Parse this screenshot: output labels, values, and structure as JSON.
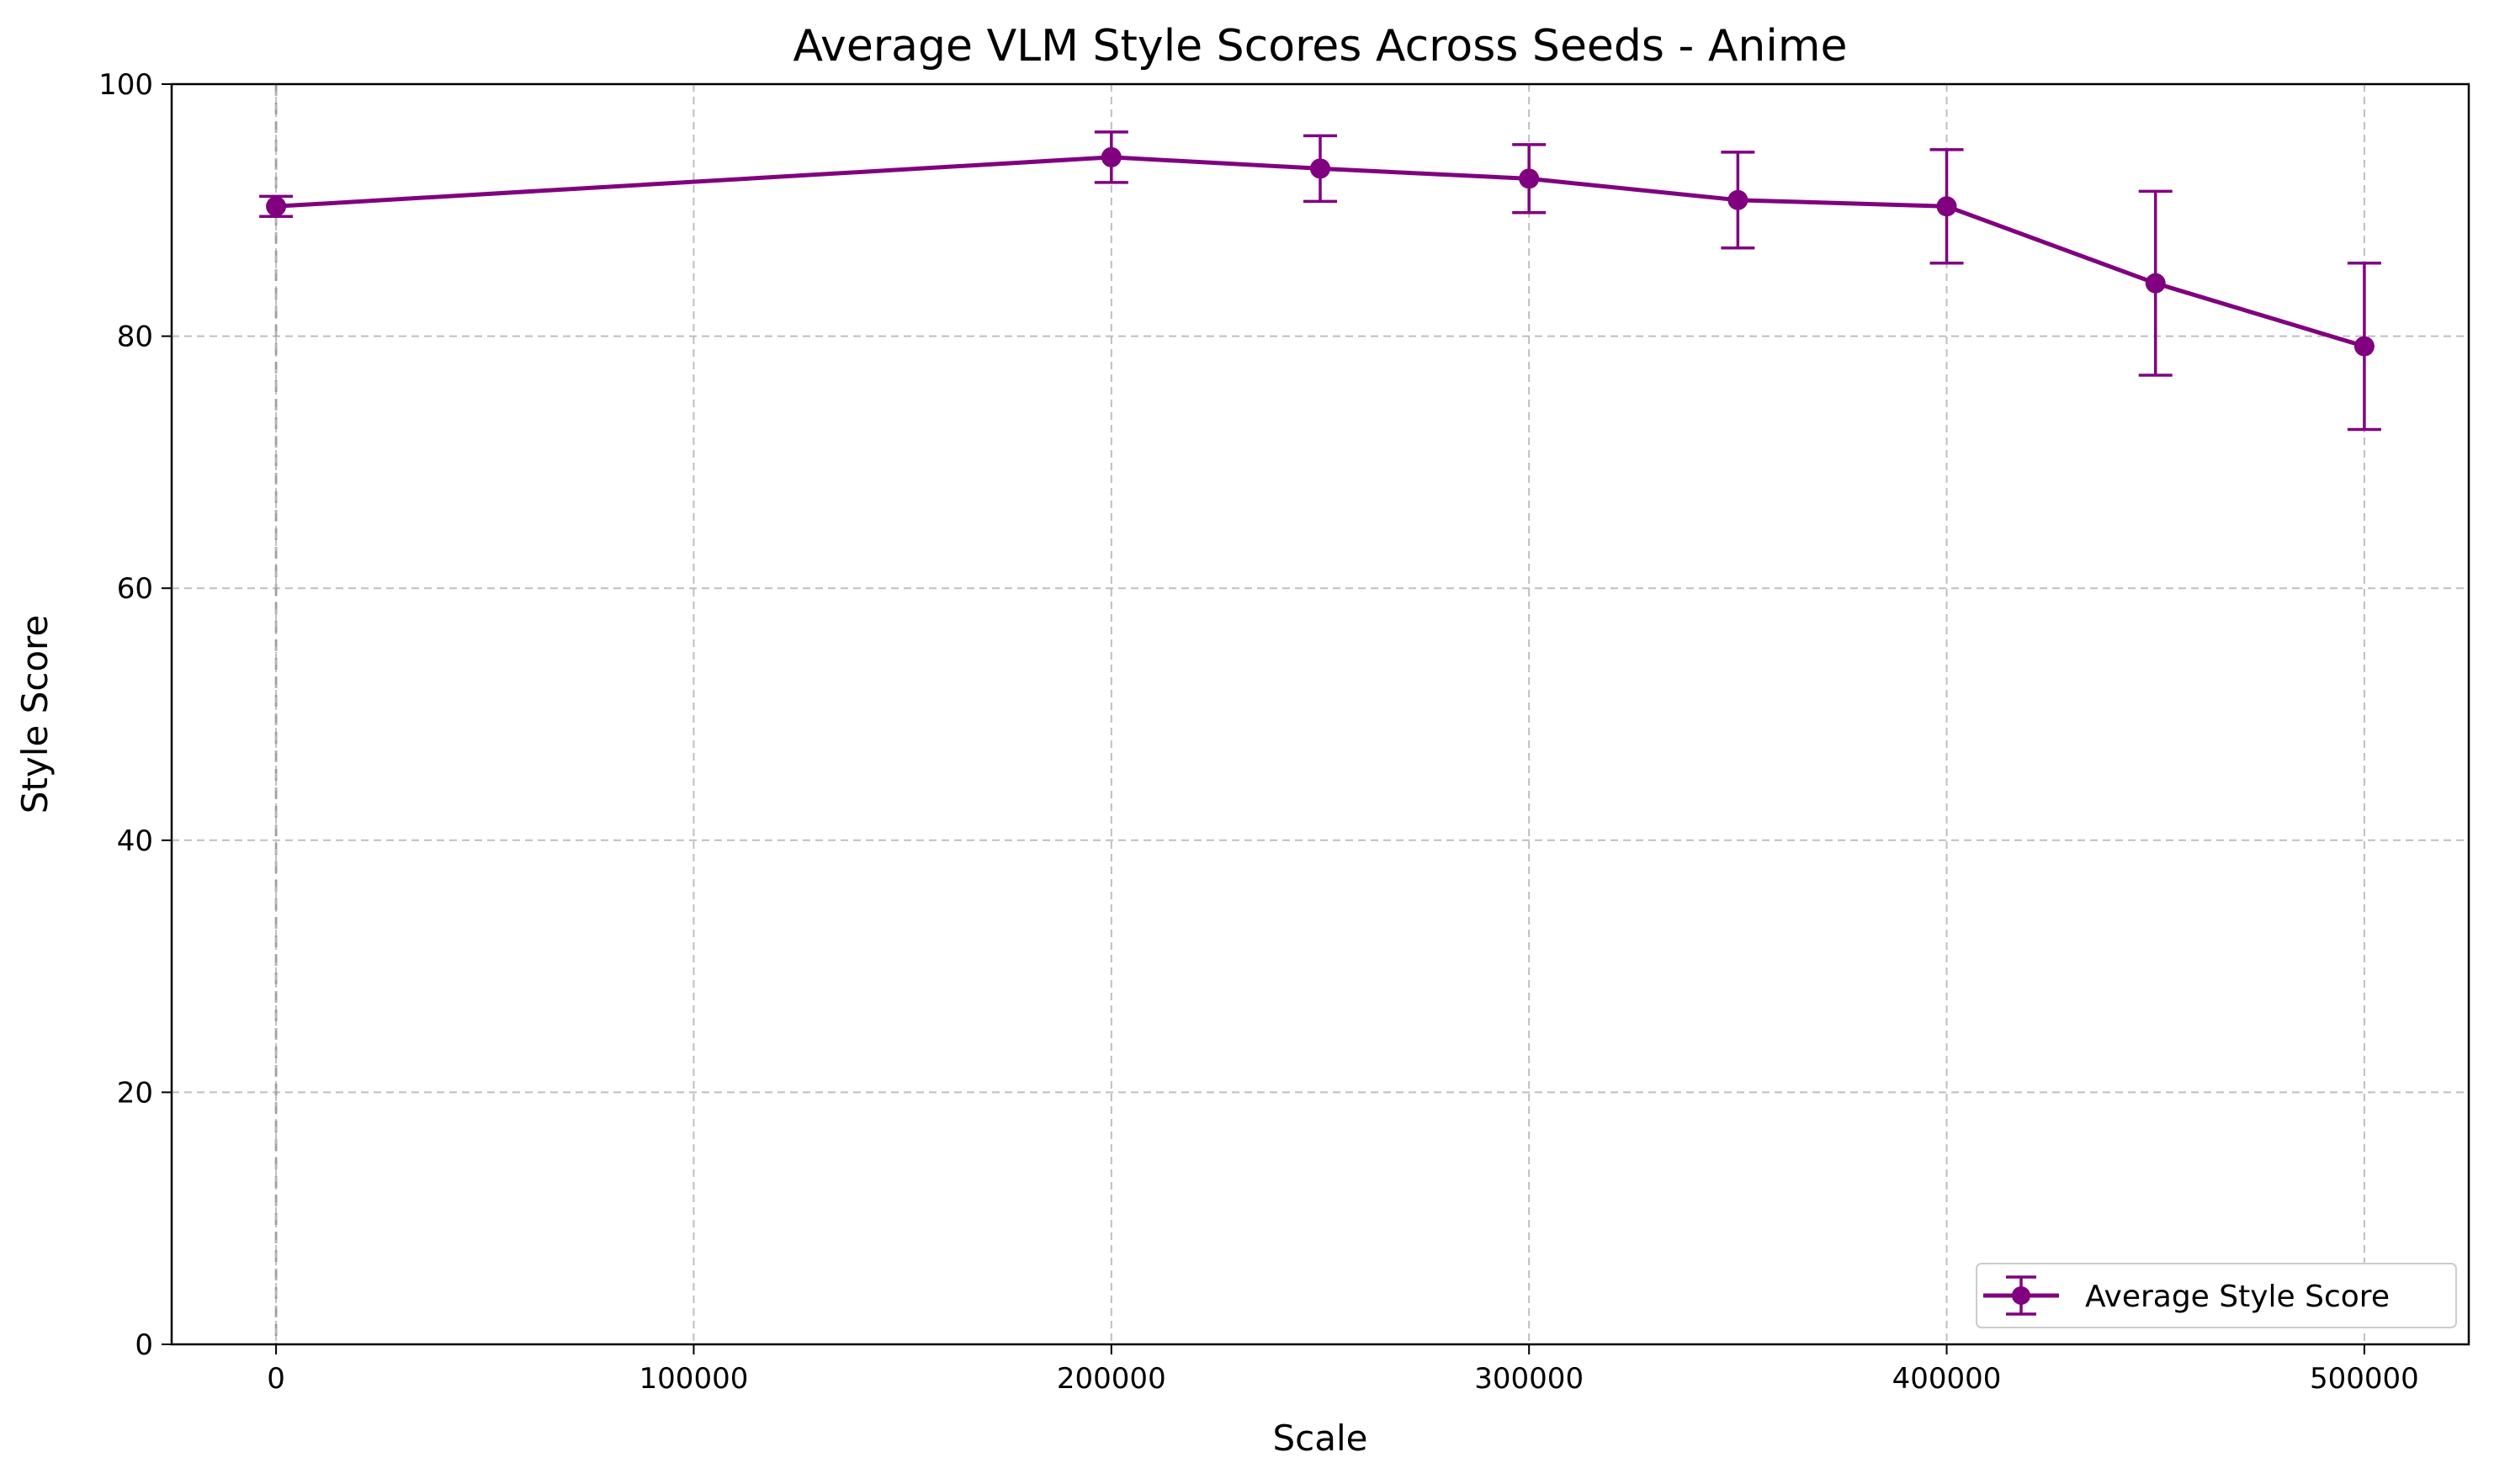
{
  "chart_data": {
    "type": "line",
    "title": "Average VLM Style Scores Across Seeds - Anime",
    "xlabel": "Scale",
    "ylabel": "Style Score",
    "xlim": [
      -25000,
      525000
    ],
    "ylim": [
      0,
      100
    ],
    "x_ticks": [
      0,
      100000,
      200000,
      300000,
      400000,
      500000
    ],
    "y_ticks": [
      0,
      20,
      40,
      60,
      80,
      100
    ],
    "x_tick_labels": [
      "0",
      "100000",
      "200000",
      "300000",
      "400000",
      "500000"
    ],
    "y_tick_labels": [
      "0",
      "20",
      "40",
      "60",
      "80",
      "100"
    ],
    "grid": true,
    "reference_line_x": 0,
    "legend_position": "lower-right",
    "series": [
      {
        "name": "Average Style Score",
        "color": "#800080",
        "x": [
          0,
          200000,
          250000,
          300000,
          350000,
          400000,
          450000,
          500000
        ],
        "y": [
          90.3,
          94.2,
          93.3,
          92.5,
          90.8,
          90.3,
          84.2,
          79.2
        ],
        "error": [
          0.8,
          2.0,
          2.6,
          2.7,
          3.8,
          4.5,
          7.3,
          6.6
        ]
      }
    ]
  }
}
